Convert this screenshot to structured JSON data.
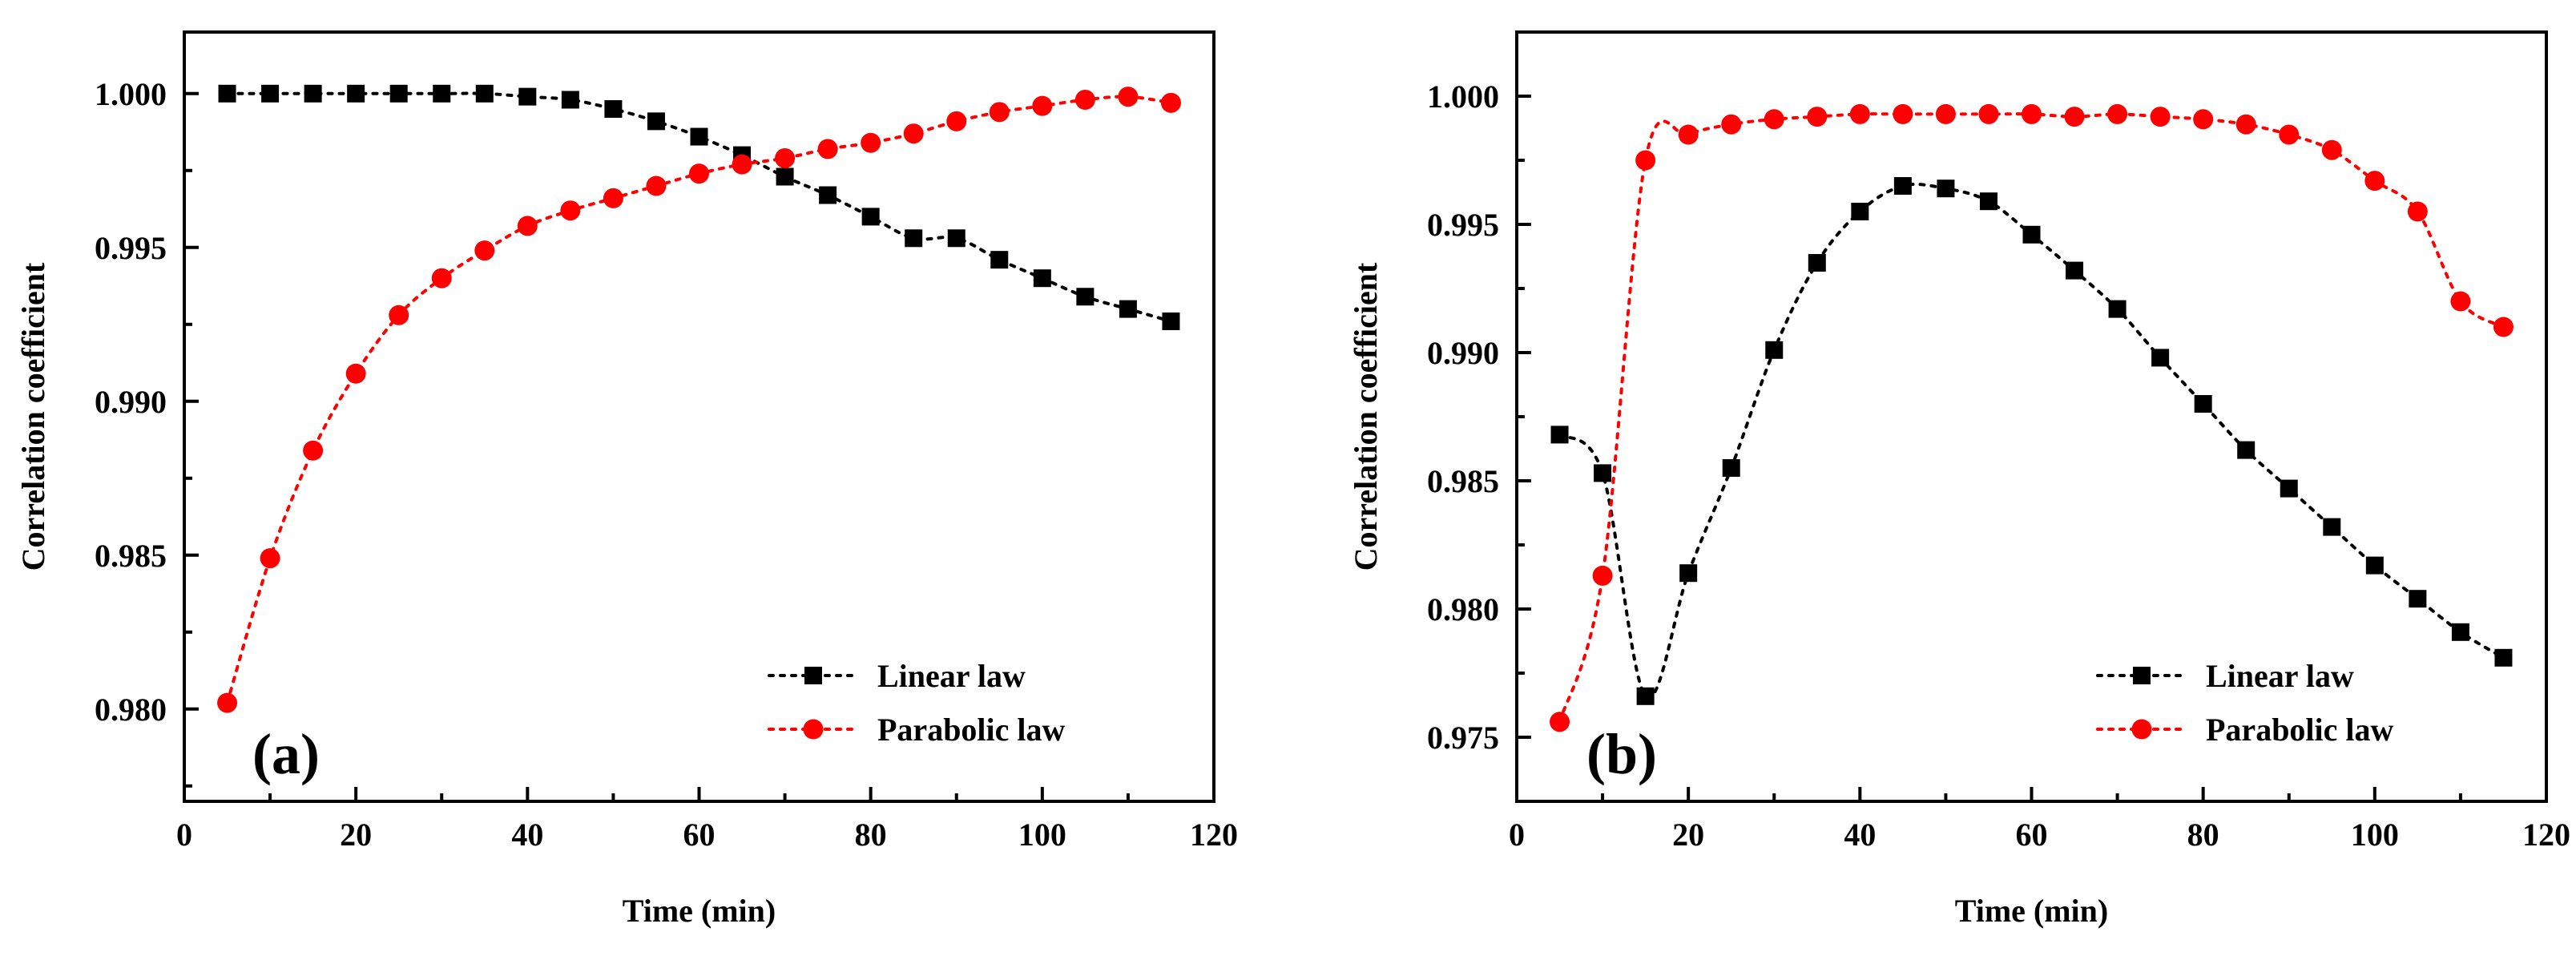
{
  "chart_data": [
    {
      "type": "line",
      "panel_label": "(a)",
      "xlabel": "Time (min)",
      "ylabel": "Correlation coefficient",
      "xlim": [
        0,
        120
      ],
      "ylim": [
        0.977,
        1.002
      ],
      "xticks": [
        0,
        20,
        40,
        60,
        80,
        100,
        120
      ],
      "xtick_labels": [
        "0",
        "20",
        "40",
        "60",
        "80",
        "100",
        "120"
      ],
      "yticks": [
        0.98,
        0.985,
        0.99,
        0.995,
        1.0
      ],
      "ytick_labels": [
        "0.980",
        "0.985",
        "0.990",
        "0.995",
        "1.000"
      ],
      "legend_position": "bottom-right",
      "x": [
        5,
        10,
        15,
        20,
        25,
        30,
        35,
        40,
        45,
        50,
        55,
        60,
        65,
        70,
        75,
        80,
        85,
        90,
        95,
        100,
        105,
        110,
        115
      ],
      "series": [
        {
          "name": "Linear law",
          "marker": "square",
          "color": "#000000",
          "values": [
            1.0,
            1.0,
            1.0,
            1.0,
            1.0,
            1.0,
            1.0,
            0.9999,
            0.9998,
            0.9995,
            0.9991,
            0.9986,
            0.998,
            0.9973,
            0.9967,
            0.996,
            0.9953,
            0.9953,
            0.9946,
            0.994,
            0.9934,
            0.993,
            0.9926
          ]
        },
        {
          "name": "Parabolic law",
          "marker": "circle",
          "color": "#ff0000",
          "values": [
            0.9802,
            0.9849,
            0.9884,
            0.9909,
            0.9928,
            0.994,
            0.9949,
            0.9957,
            0.9962,
            0.9966,
            0.997,
            0.9974,
            0.9977,
            0.9979,
            0.9982,
            0.9984,
            0.9987,
            0.9991,
            0.9994,
            0.9996,
            0.9998,
            0.9999,
            0.9997
          ]
        }
      ]
    },
    {
      "type": "line",
      "panel_label": "(b)",
      "xlabel": "Time (min)",
      "ylabel": "Correlation coefficient",
      "xlim": [
        0,
        120
      ],
      "ylim": [
        0.9725,
        1.0025
      ],
      "xticks": [
        0,
        20,
        40,
        60,
        80,
        100,
        120
      ],
      "xtick_labels": [
        "0",
        "20",
        "40",
        "60",
        "80",
        "100",
        "120"
      ],
      "yticks": [
        0.975,
        0.98,
        0.985,
        0.99,
        0.995,
        1.0
      ],
      "ytick_labels": [
        "0.975",
        "0.980",
        "0.985",
        "0.990",
        "0.995",
        "1.000"
      ],
      "legend_position": "bottom-right",
      "x": [
        5,
        10,
        15,
        20,
        25,
        30,
        35,
        40,
        45,
        50,
        55,
        60,
        65,
        70,
        75,
        80,
        85,
        90,
        95,
        100,
        105,
        110,
        115
      ],
      "series": [
        {
          "name": "Linear law",
          "marker": "square",
          "color": "#000000",
          "values": [
            0.9868,
            0.9853,
            0.9766,
            0.9814,
            0.9855,
            0.9901,
            0.9935,
            0.9955,
            0.9965,
            0.9964,
            0.9959,
            0.9946,
            0.9932,
            0.9917,
            0.9898,
            0.988,
            0.9862,
            0.9847,
            0.9832,
            0.9817,
            0.9804,
            0.9791,
            0.9781
          ]
        },
        {
          "name": "Parabolic law",
          "marker": "circle",
          "color": "#ff0000",
          "values": [
            0.9756,
            0.9813,
            0.9975,
            0.9985,
            0.9989,
            0.9991,
            0.9992,
            0.9993,
            0.9993,
            0.9993,
            0.9993,
            0.9993,
            0.9992,
            0.9993,
            0.9992,
            0.9991,
            0.9989,
            0.9985,
            0.9979,
            0.9967,
            0.9955,
            0.992,
            0.991
          ]
        }
      ]
    }
  ]
}
